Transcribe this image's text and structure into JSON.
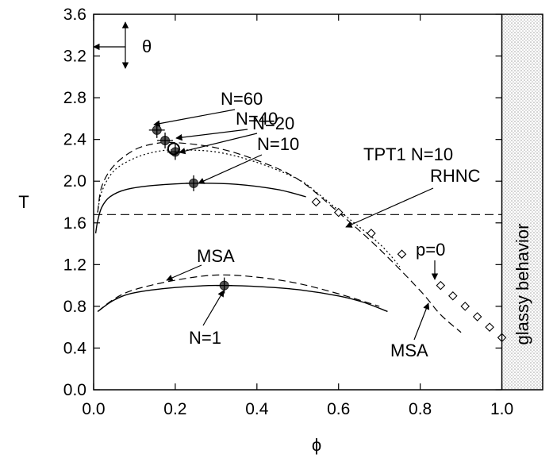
{
  "chart_data": {
    "type": "line",
    "xlabel": "ϕ",
    "ylabel": "T",
    "xlim": [
      0.0,
      1.1
    ],
    "ylim": [
      0.0,
      3.6
    ],
    "xticks": [
      "0.0",
      "0.2",
      "0.4",
      "0.6",
      "0.8",
      "1.0"
    ],
    "yticks": [
      "0.0",
      "0.4",
      "0.8",
      "1.2",
      "1.6",
      "2.0",
      "2.4",
      "2.8",
      "3.2",
      "3.6"
    ],
    "grid": false,
    "shaded_region": {
      "x_start": 1.0,
      "x_end": 1.1,
      "label": "glassy behavior"
    },
    "theta": {
      "label": "θ",
      "T": 3.3
    },
    "reference_line": {
      "T": 1.68,
      "style": "long-dash"
    },
    "curves": [
      {
        "id": "n10-solid",
        "style": "solid",
        "points": [
          [
            0.005,
            1.5
          ],
          [
            0.01,
            1.62
          ],
          [
            0.02,
            1.75
          ],
          [
            0.04,
            1.85
          ],
          [
            0.08,
            1.92
          ],
          [
            0.15,
            1.96
          ],
          [
            0.25,
            1.98
          ],
          [
            0.35,
            1.97
          ],
          [
            0.45,
            1.92
          ],
          [
            0.52,
            1.85
          ]
        ]
      },
      {
        "id": "n60-dashed",
        "style": "dashed",
        "points": [
          [
            0.01,
            1.7
          ],
          [
            0.02,
            1.95
          ],
          [
            0.05,
            2.15
          ],
          [
            0.1,
            2.3
          ],
          [
            0.15,
            2.36
          ],
          [
            0.2,
            2.37
          ],
          [
            0.3,
            2.32
          ],
          [
            0.4,
            2.2
          ],
          [
            0.5,
            2.02
          ],
          [
            0.6,
            1.7
          ],
          [
            0.7,
            1.35
          ],
          [
            0.8,
            0.95
          ],
          [
            0.85,
            0.72
          ],
          [
            0.9,
            0.55
          ]
        ]
      },
      {
        "id": "n40-dotted",
        "style": "dotted",
        "points": [
          [
            0.01,
            1.7
          ],
          [
            0.02,
            1.9
          ],
          [
            0.05,
            2.1
          ],
          [
            0.1,
            2.22
          ],
          [
            0.15,
            2.28
          ],
          [
            0.2,
            2.3
          ],
          [
            0.3,
            2.28
          ],
          [
            0.4,
            2.18
          ],
          [
            0.5,
            2.02
          ],
          [
            0.55,
            1.88
          ],
          [
            0.6,
            1.72
          ],
          [
            0.7,
            1.4
          ],
          [
            0.75,
            1.18
          ]
        ]
      },
      {
        "id": "n1-solid",
        "style": "solid",
        "points": [
          [
            0.01,
            0.75
          ],
          [
            0.05,
            0.86
          ],
          [
            0.1,
            0.93
          ],
          [
            0.2,
            0.98
          ],
          [
            0.3,
            1.0
          ],
          [
            0.4,
            0.99
          ],
          [
            0.5,
            0.96
          ],
          [
            0.6,
            0.9
          ],
          [
            0.66,
            0.84
          ],
          [
            0.72,
            0.75
          ]
        ]
      },
      {
        "id": "n1-msa-dashed",
        "style": "dashed",
        "points": [
          [
            0.01,
            0.75
          ],
          [
            0.05,
            0.87
          ],
          [
            0.1,
            0.96
          ],
          [
            0.2,
            1.05
          ],
          [
            0.3,
            1.1
          ],
          [
            0.4,
            1.08
          ],
          [
            0.5,
            1.02
          ],
          [
            0.6,
            0.92
          ],
          [
            0.7,
            0.8
          ]
        ]
      }
    ],
    "markers": [
      {
        "label": "N=60",
        "x": 0.155,
        "y": 2.49,
        "type": "cross"
      },
      {
        "label": "N=40",
        "x": 0.175,
        "y": 2.39,
        "type": "cross"
      },
      {
        "label": "N=20",
        "x": 0.2,
        "y": 2.28,
        "type": "circle-cross"
      },
      {
        "label": "N=10",
        "x": 0.245,
        "y": 1.98,
        "type": "cross"
      },
      {
        "label": "N=1",
        "x": 0.32,
        "y": 1.0,
        "type": "cross"
      }
    ],
    "diamond_series": {
      "name": "",
      "x": [
        0.545,
        0.6,
        0.68,
        0.755,
        0.85,
        0.88,
        0.91,
        0.94,
        0.97,
        1.0
      ],
      "y": [
        1.8,
        1.7,
        1.5,
        1.3,
        1.0,
        0.9,
        0.8,
        0.7,
        0.6,
        0.5
      ]
    },
    "annotations": {
      "n60": "N=60",
      "n40": "N=40",
      "n20": "N=20",
      "n10": "N=10",
      "n1": "N=1",
      "tpt1": "TPT1 N=10",
      "rhnc": "RHNC",
      "msa_upper": "MSA",
      "msa_lower": "MSA",
      "p0": "p=0",
      "glassy": "glassy behavior"
    }
  }
}
